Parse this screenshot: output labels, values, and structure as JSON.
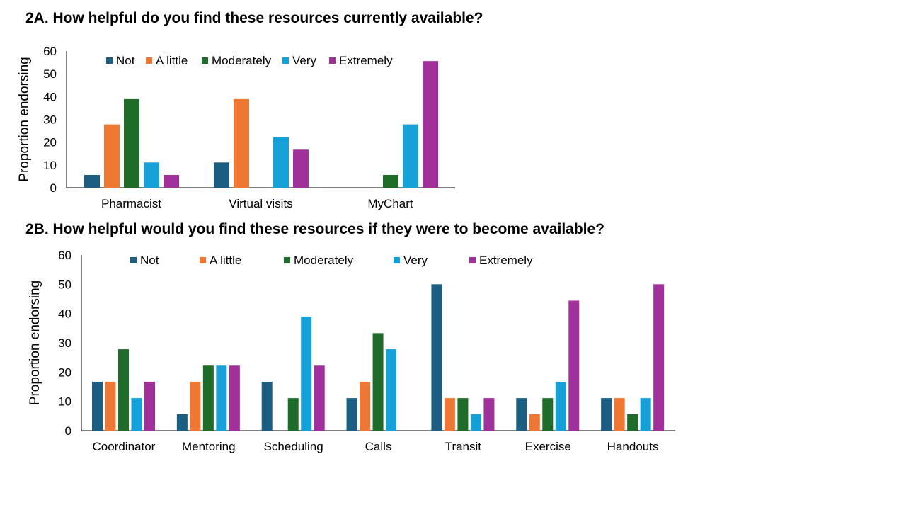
{
  "colors": {
    "Not": "#1b5e82",
    "A little": "#ed7733",
    "Moderately": "#1e6b2a",
    "Very": "#16a0d8",
    "Extremely": "#a0309a",
    "axis": "#000000"
  },
  "chart_data": [
    {
      "type": "bar",
      "title": "2A. How helpful do you find these resources currently available?",
      "xlabel": "",
      "ylabel": "Proportion endorsing",
      "ylim": [
        0,
        60
      ],
      "yticks": [
        0,
        10,
        20,
        30,
        40,
        50,
        60
      ],
      "legend_position": "top",
      "categories": [
        "Pharmacist",
        "Virtual visits",
        "MyChart"
      ],
      "series": [
        {
          "name": "Not",
          "values": [
            5.6,
            11.1,
            0
          ]
        },
        {
          "name": "A little",
          "values": [
            27.8,
            38.9,
            0
          ]
        },
        {
          "name": "Moderately",
          "values": [
            38.9,
            0,
            5.6
          ]
        },
        {
          "name": "Very",
          "values": [
            11.1,
            22.2,
            27.8
          ]
        },
        {
          "name": "Extremely",
          "values": [
            5.6,
            16.7,
            55.6
          ]
        }
      ]
    },
    {
      "type": "bar",
      "title": "2B. How helpful would you find these resources if they were to become available?",
      "xlabel": "",
      "ylabel": "Proportion endorsing",
      "ylim": [
        0,
        60
      ],
      "yticks": [
        0,
        10,
        20,
        30,
        40,
        50,
        60
      ],
      "legend_position": "top",
      "categories": [
        "Coordinator",
        "Mentoring",
        "Scheduling",
        "Calls",
        "Transit",
        "Exercise",
        "Handouts"
      ],
      "series": [
        {
          "name": "Not",
          "values": [
            16.7,
            5.6,
            16.7,
            11.1,
            50.0,
            11.1,
            11.1
          ]
        },
        {
          "name": "A little",
          "values": [
            16.7,
            16.7,
            0,
            16.7,
            11.1,
            5.6,
            11.1
          ]
        },
        {
          "name": "Moderately",
          "values": [
            27.8,
            22.2,
            11.1,
            33.3,
            11.1,
            11.1,
            5.6
          ]
        },
        {
          "name": "Very",
          "values": [
            11.1,
            22.2,
            38.9,
            27.8,
            5.6,
            16.7,
            11.1
          ]
        },
        {
          "name": "Extremely",
          "values": [
            16.7,
            22.2,
            22.2,
            0,
            11.1,
            44.4,
            50.0
          ]
        }
      ]
    }
  ]
}
